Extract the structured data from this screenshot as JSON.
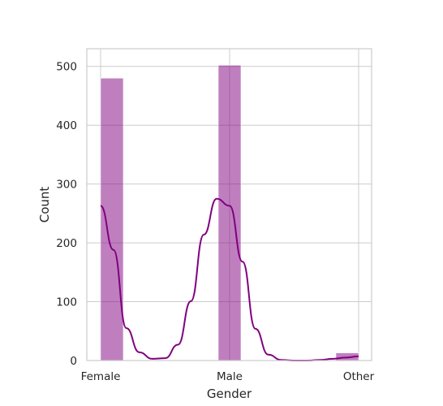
{
  "chart_data": {
    "type": "bar",
    "title": "",
    "xlabel": "Gender",
    "ylabel": "Count",
    "categories": [
      "Female",
      "Male",
      "Other"
    ],
    "values": [
      480,
      502,
      13
    ],
    "ylim": [
      0,
      530
    ],
    "yticks": [
      0,
      100,
      200,
      300,
      400,
      500
    ],
    "grid": true,
    "bar_color": "#800080",
    "bar_alpha": 0.5,
    "kde": {
      "color": "#800080",
      "x": [
        0.0,
        0.1,
        0.2,
        0.3,
        0.4,
        0.5,
        0.6,
        0.7,
        0.8,
        0.9,
        1.0,
        1.1,
        1.2,
        1.3,
        1.4,
        1.5,
        1.6,
        1.7,
        1.8,
        1.9,
        2.0
      ],
      "y": [
        263,
        188,
        55,
        14,
        3,
        4,
        27,
        101,
        214,
        275,
        263,
        168,
        54,
        10,
        1,
        0,
        0,
        1,
        3,
        5,
        7
      ]
    }
  }
}
